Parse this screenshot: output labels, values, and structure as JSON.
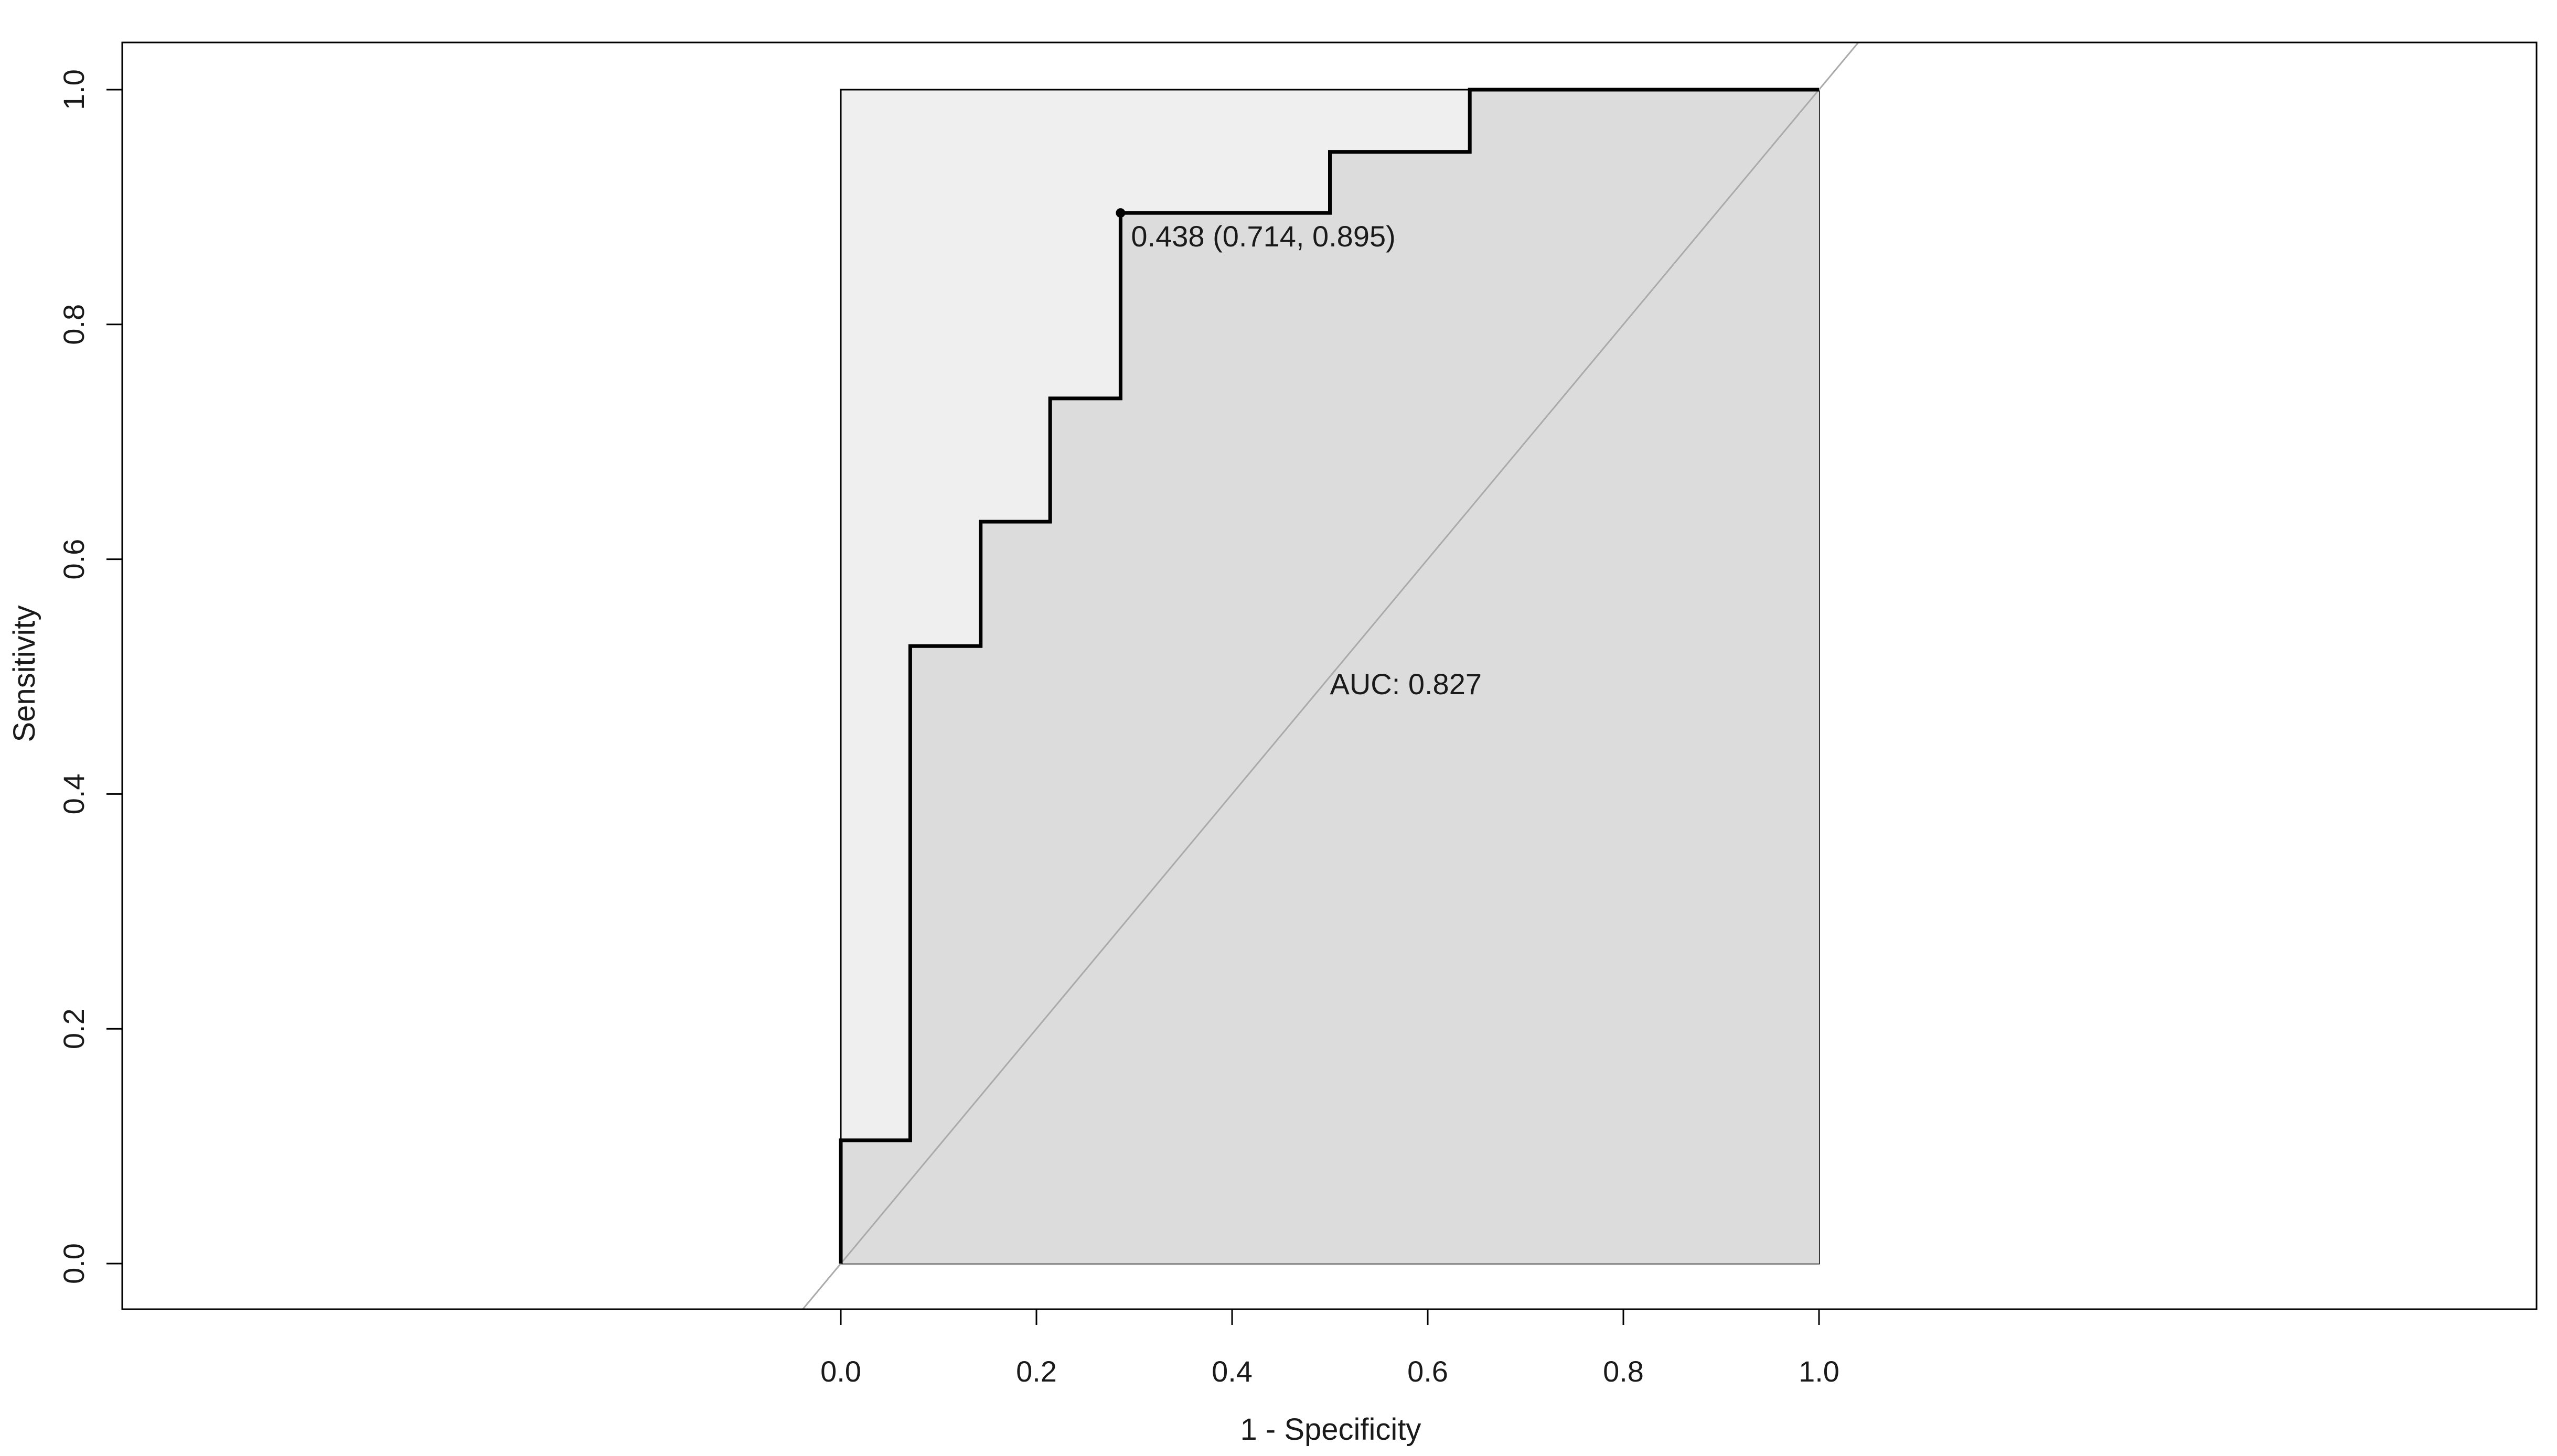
{
  "chart_data": {
    "type": "line",
    "xlabel": "1 - Specificity",
    "ylabel": "Sensitivity",
    "xlim": [
      0,
      1
    ],
    "ylim": [
      0,
      1
    ],
    "x_ticks": [
      "0.0",
      "0.2",
      "0.4",
      "0.6",
      "0.8",
      "1.0"
    ],
    "y_ticks": [
      "0.0",
      "0.2",
      "0.4",
      "0.6",
      "0.8",
      "1.0"
    ],
    "grid": false,
    "legend": "none",
    "series": [
      {
        "x": [
          0.0,
          0.0,
          0.071,
          0.071,
          0.143,
          0.143,
          0.214,
          0.214,
          0.286,
          0.286,
          0.5,
          0.5,
          0.643,
          0.643,
          1.0
        ],
        "y": [
          0.0,
          0.105,
          0.105,
          0.526,
          0.526,
          0.632,
          0.632,
          0.737,
          0.737,
          0.895,
          0.895,
          0.947,
          0.947,
          1.0,
          1.0
        ]
      }
    ],
    "reference_line": {
      "x": [
        0,
        1
      ],
      "y": [
        0,
        1
      ]
    },
    "highlight_point": {
      "x": 0.286,
      "y": 0.895,
      "label": "0.438 (0.714, 0.895)"
    },
    "auc_label": "AUC: 0.827",
    "colors": {
      "curve": "#000000",
      "auc_fill": "#dcdcdc",
      "box_fill": "#efefef",
      "diagonal": "#aaaaaa",
      "frame": "#000000"
    }
  }
}
